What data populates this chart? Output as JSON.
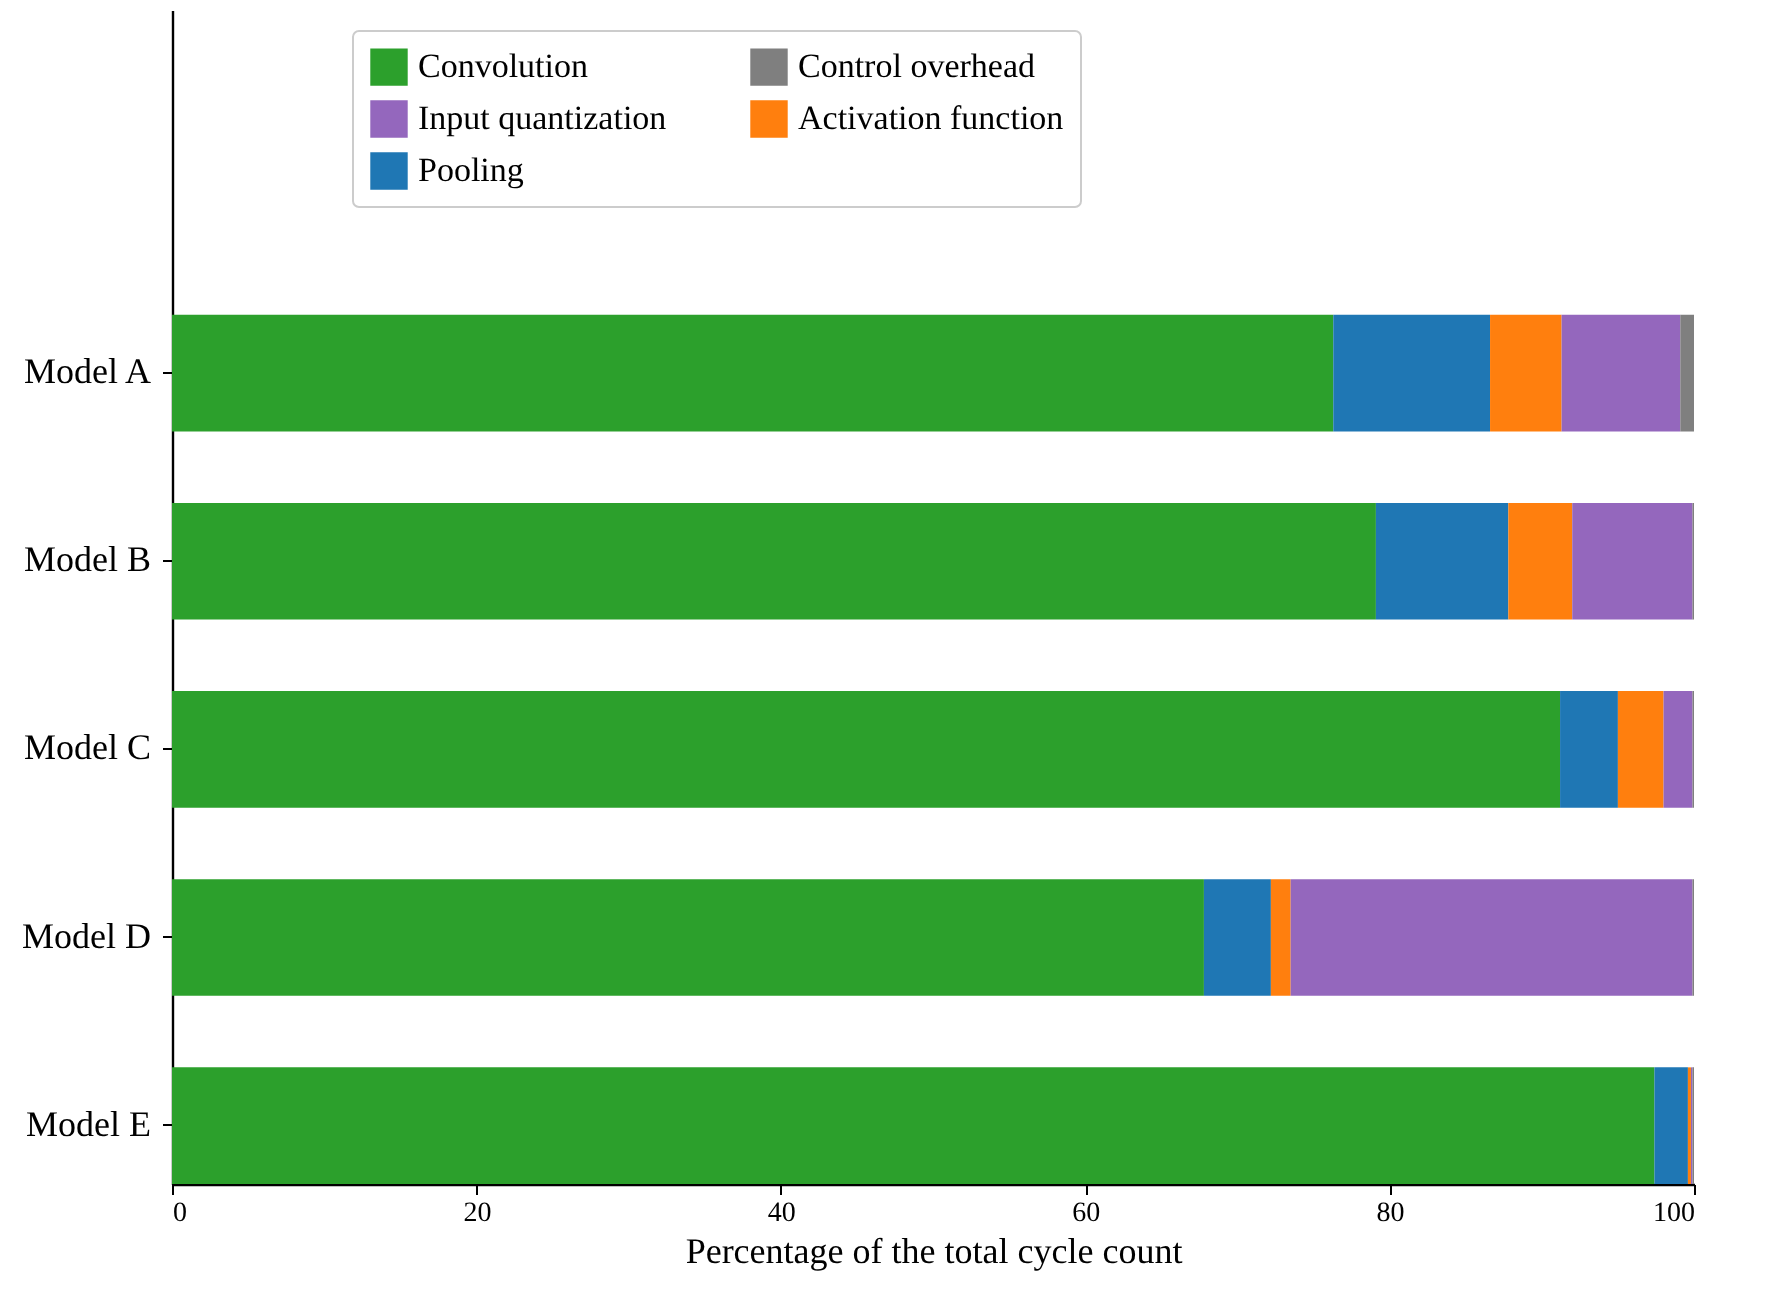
{
  "chart_data": {
    "type": "bar",
    "orientation": "horizontal",
    "stacked": true,
    "xlabel": "Percentage of the total cycle count",
    "categories": [
      "Model A",
      "Model B",
      "Model C",
      "Model D",
      "Model E"
    ],
    "series": [
      {
        "name": "Convolution",
        "color": "#2ca02c",
        "values": [
          76.3,
          79.1,
          91.2,
          67.8,
          97.4
        ]
      },
      {
        "name": "Pooling",
        "color": "#1f77b4",
        "values": [
          10.3,
          8.7,
          3.8,
          4.4,
          2.2
        ]
      },
      {
        "name": "Activation function",
        "color": "#ff7f0e",
        "values": [
          4.7,
          4.2,
          3.0,
          1.3,
          0.2
        ]
      },
      {
        "name": "Input quantization",
        "color": "#9467bd",
        "values": [
          7.8,
          7.9,
          1.9,
          26.4,
          0.1
        ]
      },
      {
        "name": "Control overhead",
        "color": "#7f7f7f",
        "values": [
          0.9,
          0.1,
          0.1,
          0.1,
          0.1
        ]
      }
    ],
    "xlim": [
      0,
      100
    ],
    "xticks": [
      0,
      20,
      40,
      60,
      80,
      100
    ],
    "grid": false,
    "legend": "top"
  }
}
